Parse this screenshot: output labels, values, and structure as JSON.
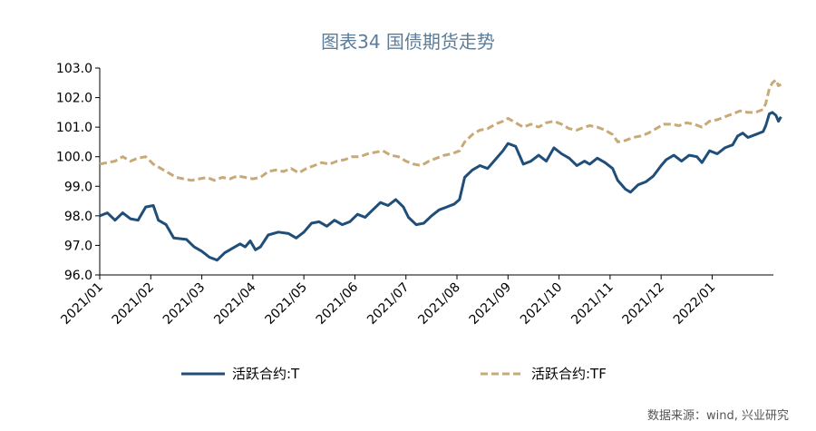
{
  "chart_data": {
    "type": "line",
    "title": "图表34  国债期货走势",
    "source": "数据来源：wind, 兴业研究",
    "ylim": [
      96.0,
      103.0
    ],
    "yticks": [
      "103.0",
      "102.0",
      "101.0",
      "100.0",
      "99.0",
      "98.0",
      "97.0",
      "96.0"
    ],
    "ytick_values": [
      103,
      102,
      101,
      100,
      99,
      98,
      97,
      96
    ],
    "x_months": [
      "2021/01",
      "2021/02",
      "2021/03",
      "2021/04",
      "2021/05",
      "2021/06",
      "2021/07",
      "2021/08",
      "2021/09",
      "2021/10",
      "2021/11",
      "2021/12",
      "2022/01"
    ],
    "x_end": 13.2,
    "legend": [
      "活跃合约:T",
      "活跃合约:TF"
    ],
    "series": [
      {
        "name": "活跃合约:T",
        "color": "#1f4e79",
        "dash": "solid",
        "points": [
          [
            0,
            98.0
          ],
          [
            0.15,
            98.1
          ],
          [
            0.3,
            97.85
          ],
          [
            0.45,
            98.1
          ],
          [
            0.6,
            97.9
          ],
          [
            0.75,
            97.85
          ],
          [
            0.9,
            98.3
          ],
          [
            1.05,
            98.35
          ],
          [
            1.15,
            97.85
          ],
          [
            1.3,
            97.7
          ],
          [
            1.45,
            97.25
          ],
          [
            1.7,
            97.2
          ],
          [
            1.85,
            96.95
          ],
          [
            2.0,
            96.8
          ],
          [
            2.15,
            96.6
          ],
          [
            2.3,
            96.5
          ],
          [
            2.45,
            96.75
          ],
          [
            2.6,
            96.9
          ],
          [
            2.75,
            97.05
          ],
          [
            2.85,
            96.95
          ],
          [
            2.95,
            97.15
          ],
          [
            3.05,
            96.85
          ],
          [
            3.15,
            96.95
          ],
          [
            3.3,
            97.35
          ],
          [
            3.5,
            97.45
          ],
          [
            3.7,
            97.4
          ],
          [
            3.85,
            97.25
          ],
          [
            4.0,
            97.45
          ],
          [
            4.15,
            97.75
          ],
          [
            4.3,
            97.8
          ],
          [
            4.45,
            97.65
          ],
          [
            4.6,
            97.85
          ],
          [
            4.75,
            97.7
          ],
          [
            4.9,
            97.8
          ],
          [
            5.05,
            98.05
          ],
          [
            5.2,
            97.95
          ],
          [
            5.35,
            98.2
          ],
          [
            5.5,
            98.45
          ],
          [
            5.65,
            98.35
          ],
          [
            5.8,
            98.55
          ],
          [
            5.95,
            98.3
          ],
          [
            6.05,
            97.95
          ],
          [
            6.2,
            97.7
          ],
          [
            6.35,
            97.75
          ],
          [
            6.5,
            98.0
          ],
          [
            6.65,
            98.2
          ],
          [
            6.8,
            98.3
          ],
          [
            6.95,
            98.4
          ],
          [
            7.05,
            98.55
          ],
          [
            7.15,
            99.3
          ],
          [
            7.3,
            99.55
          ],
          [
            7.45,
            99.7
          ],
          [
            7.6,
            99.6
          ],
          [
            7.75,
            99.9
          ],
          [
            7.9,
            100.2
          ],
          [
            8.0,
            100.45
          ],
          [
            8.15,
            100.35
          ],
          [
            8.3,
            99.75
          ],
          [
            8.45,
            99.85
          ],
          [
            8.6,
            100.05
          ],
          [
            8.75,
            99.85
          ],
          [
            8.9,
            100.3
          ],
          [
            9.05,
            100.1
          ],
          [
            9.2,
            99.95
          ],
          [
            9.35,
            99.7
          ],
          [
            9.5,
            99.85
          ],
          [
            9.6,
            99.75
          ],
          [
            9.75,
            99.95
          ],
          [
            9.9,
            99.8
          ],
          [
            10.05,
            99.6
          ],
          [
            10.15,
            99.2
          ],
          [
            10.3,
            98.9
          ],
          [
            10.4,
            98.8
          ],
          [
            10.55,
            99.05
          ],
          [
            10.7,
            99.15
          ],
          [
            10.85,
            99.35
          ],
          [
            11.0,
            99.7
          ],
          [
            11.1,
            99.9
          ],
          [
            11.25,
            100.05
          ],
          [
            11.4,
            99.85
          ],
          [
            11.55,
            100.05
          ],
          [
            11.7,
            100.0
          ],
          [
            11.8,
            99.8
          ],
          [
            11.95,
            100.2
          ],
          [
            12.1,
            100.1
          ],
          [
            12.25,
            100.3
          ],
          [
            12.4,
            100.4
          ],
          [
            12.5,
            100.7
          ],
          [
            12.6,
            100.8
          ],
          [
            12.7,
            100.65
          ],
          [
            12.85,
            100.75
          ],
          [
            13.0,
            100.85
          ],
          [
            13.05,
            101.05
          ],
          [
            13.12,
            101.45
          ],
          [
            13.18,
            101.5
          ],
          [
            13.25,
            101.4
          ],
          [
            13.3,
            101.2
          ],
          [
            13.35,
            101.35
          ]
        ]
      },
      {
        "name": "活跃合约:TF",
        "color": "#c8aa78",
        "dash": "dashed",
        "points": [
          [
            0,
            99.75
          ],
          [
            0.15,
            99.8
          ],
          [
            0.3,
            99.85
          ],
          [
            0.45,
            100.0
          ],
          [
            0.6,
            99.85
          ],
          [
            0.75,
            99.95
          ],
          [
            0.9,
            100.0
          ],
          [
            1.05,
            99.75
          ],
          [
            1.2,
            99.6
          ],
          [
            1.35,
            99.45
          ],
          [
            1.5,
            99.3
          ],
          [
            1.65,
            99.25
          ],
          [
            1.8,
            99.2
          ],
          [
            1.95,
            99.25
          ],
          [
            2.1,
            99.3
          ],
          [
            2.25,
            99.2
          ],
          [
            2.4,
            99.3
          ],
          [
            2.55,
            99.25
          ],
          [
            2.7,
            99.35
          ],
          [
            2.85,
            99.3
          ],
          [
            3.0,
            99.25
          ],
          [
            3.15,
            99.3
          ],
          [
            3.3,
            99.5
          ],
          [
            3.45,
            99.55
          ],
          [
            3.6,
            99.5
          ],
          [
            3.75,
            99.6
          ],
          [
            3.9,
            99.45
          ],
          [
            4.05,
            99.6
          ],
          [
            4.2,
            99.7
          ],
          [
            4.35,
            99.8
          ],
          [
            4.5,
            99.75
          ],
          [
            4.65,
            99.85
          ],
          [
            4.8,
            99.9
          ],
          [
            4.95,
            100.0
          ],
          [
            5.1,
            100.0
          ],
          [
            5.25,
            100.1
          ],
          [
            5.4,
            100.15
          ],
          [
            5.55,
            100.2
          ],
          [
            5.7,
            100.05
          ],
          [
            5.85,
            100.0
          ],
          [
            6.0,
            99.85
          ],
          [
            6.15,
            99.75
          ],
          [
            6.3,
            99.7
          ],
          [
            6.45,
            99.85
          ],
          [
            6.6,
            99.95
          ],
          [
            6.75,
            100.05
          ],
          [
            6.9,
            100.1
          ],
          [
            7.05,
            100.2
          ],
          [
            7.15,
            100.5
          ],
          [
            7.3,
            100.75
          ],
          [
            7.45,
            100.9
          ],
          [
            7.6,
            100.95
          ],
          [
            7.75,
            101.1
          ],
          [
            7.9,
            101.2
          ],
          [
            8.0,
            101.3
          ],
          [
            8.15,
            101.15
          ],
          [
            8.3,
            101.0
          ],
          [
            8.45,
            101.1
          ],
          [
            8.6,
            101.0
          ],
          [
            8.75,
            101.15
          ],
          [
            8.9,
            101.2
          ],
          [
            9.05,
            101.1
          ],
          [
            9.2,
            100.95
          ],
          [
            9.35,
            100.9
          ],
          [
            9.5,
            101.0
          ],
          [
            9.6,
            101.05
          ],
          [
            9.75,
            101.0
          ],
          [
            9.9,
            100.9
          ],
          [
            10.05,
            100.75
          ],
          [
            10.15,
            100.5
          ],
          [
            10.3,
            100.55
          ],
          [
            10.45,
            100.65
          ],
          [
            10.6,
            100.7
          ],
          [
            10.75,
            100.8
          ],
          [
            10.9,
            100.95
          ],
          [
            11.05,
            101.1
          ],
          [
            11.2,
            101.1
          ],
          [
            11.35,
            101.05
          ],
          [
            11.5,
            101.15
          ],
          [
            11.65,
            101.1
          ],
          [
            11.8,
            101.0
          ],
          [
            11.95,
            101.2
          ],
          [
            12.1,
            101.25
          ],
          [
            12.25,
            101.35
          ],
          [
            12.4,
            101.45
          ],
          [
            12.55,
            101.55
          ],
          [
            12.7,
            101.5
          ],
          [
            12.85,
            101.5
          ],
          [
            13.0,
            101.6
          ],
          [
            13.05,
            101.8
          ],
          [
            13.12,
            102.3
          ],
          [
            13.18,
            102.5
          ],
          [
            13.25,
            102.6
          ],
          [
            13.3,
            102.4
          ],
          [
            13.35,
            102.45
          ]
        ]
      }
    ]
  }
}
